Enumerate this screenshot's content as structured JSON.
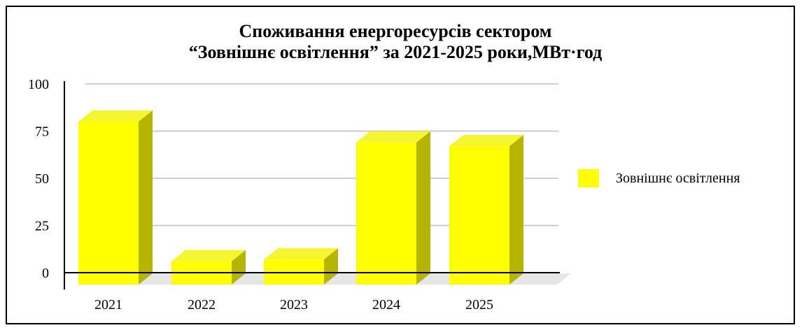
{
  "colors": {
    "bar_front": "#ffff00",
    "bar_top": "#f5f530",
    "bar_side": "#b5b500",
    "floor": "#e6e6e6",
    "grid": "#bfbfbf"
  },
  "chart_data": {
    "type": "bar",
    "title": "Споживання енергоресурсів сектором",
    "subtitle": "“Зовнішнє освітлення” за 2021-2025 роки,МВт·год",
    "categories": [
      "2021",
      "2022",
      "2023",
      "2024",
      "2025"
    ],
    "series": [
      {
        "name": "Зовнішнє освітлення",
        "values": [
          80,
          6,
          7,
          69,
          67
        ]
      }
    ],
    "yticks": [
      "100",
      "75",
      "50",
      "25",
      "0"
    ],
    "ylim": [
      0,
      100
    ],
    "grid": true,
    "legend": "right"
  }
}
